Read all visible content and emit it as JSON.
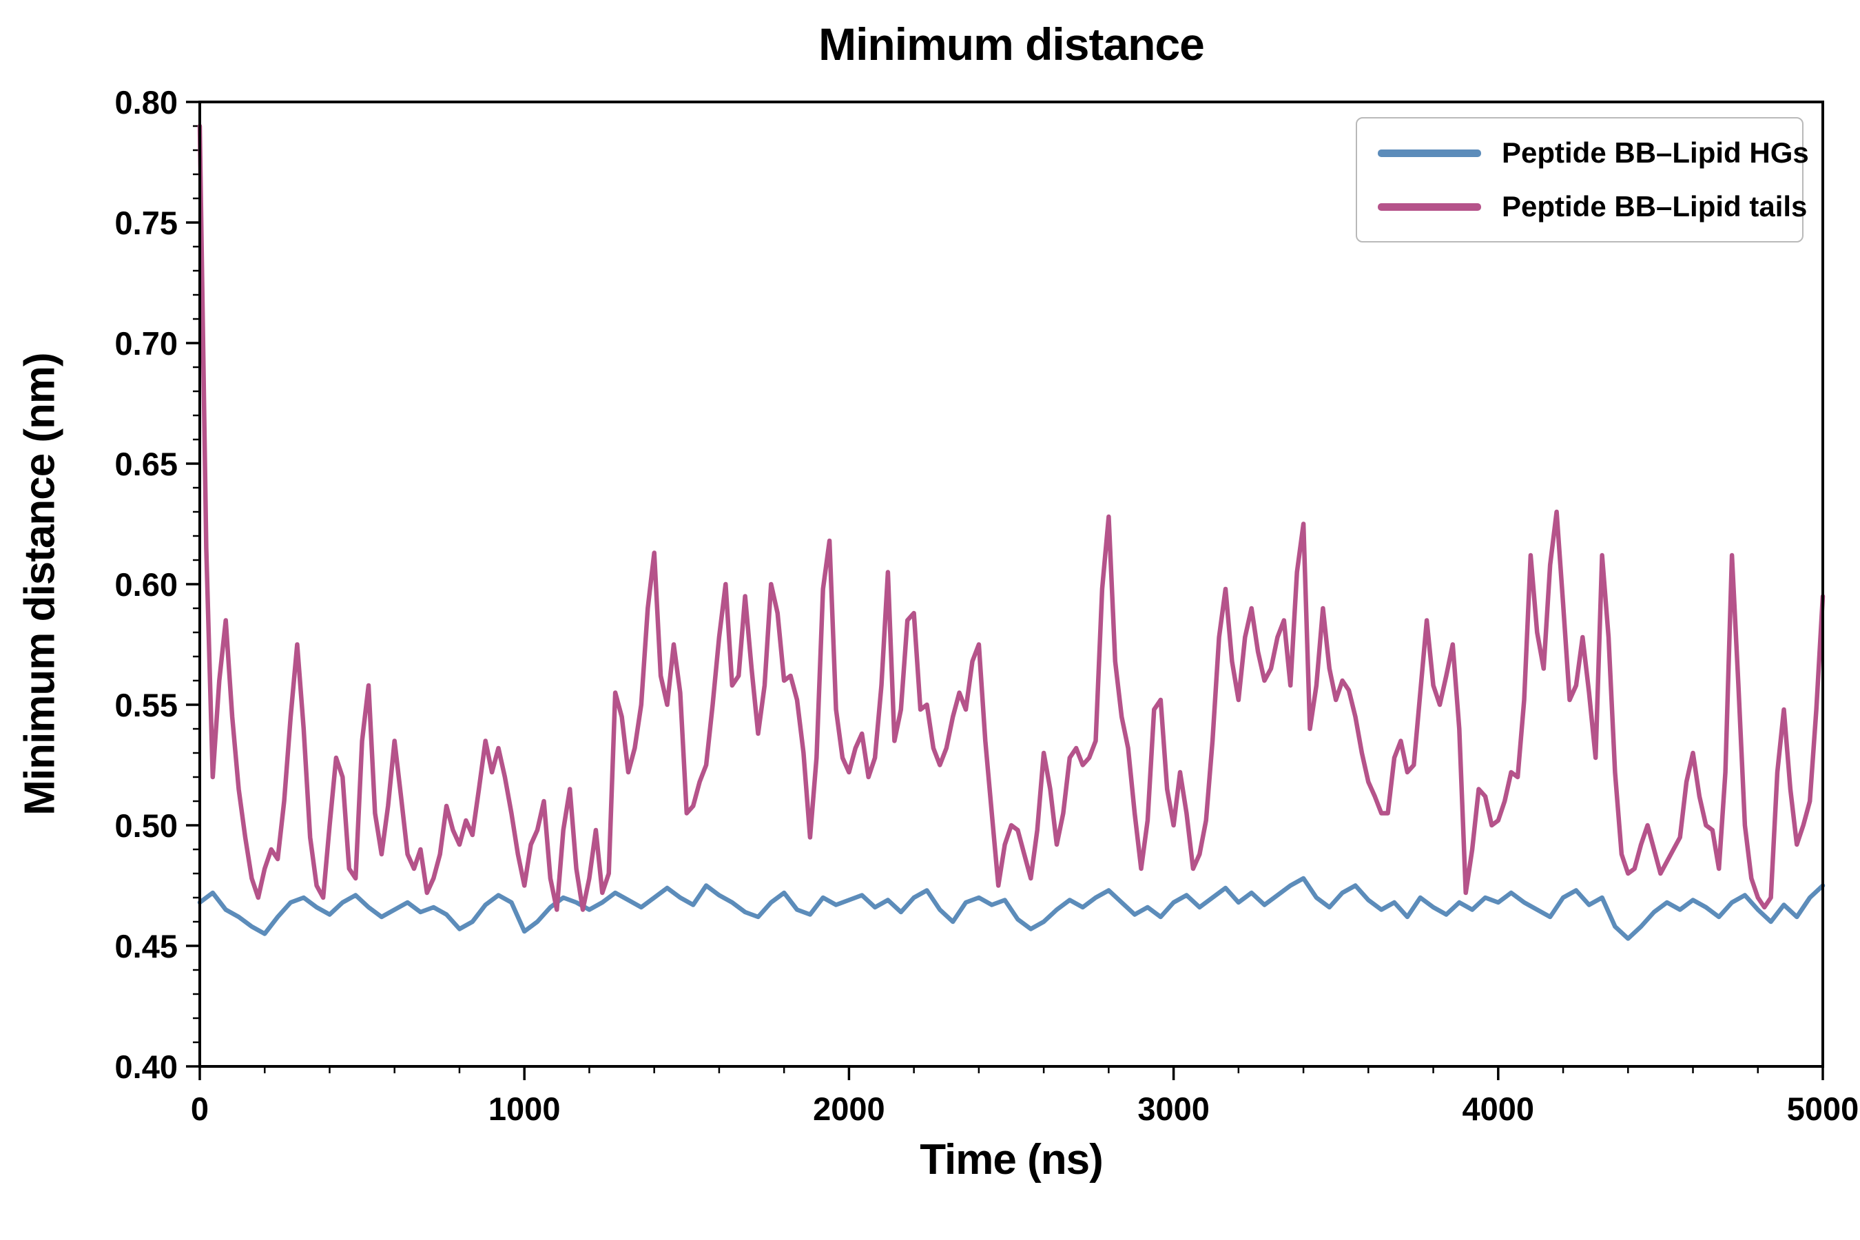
{
  "figure": {
    "background": "#ffffff",
    "axis_color": "#000000"
  },
  "chart_data": {
    "type": "line",
    "title": "Minimum distance",
    "xlabel": "Time (ns)",
    "ylabel": "Minimum distance (nm)",
    "xlim": [
      0,
      5000
    ],
    "ylim": [
      0.4,
      0.8
    ],
    "grid": false,
    "legend_position": "upper right",
    "x_ticks": [
      0,
      1000,
      2000,
      3000,
      4000,
      5000
    ],
    "x_tick_labels": [
      "0",
      "1000",
      "2000",
      "3000",
      "4000",
      "5000"
    ],
    "x_minor_step": 200,
    "y_ticks": [
      0.4,
      0.45,
      0.5,
      0.55,
      0.6,
      0.65,
      0.7,
      0.75,
      0.8
    ],
    "y_tick_labels": [
      "0.40",
      "0.45",
      "0.50",
      "0.55",
      "0.60",
      "0.65",
      "0.70",
      "0.75",
      "0.80"
    ],
    "y_minor_step": 0.01,
    "series": [
      {
        "name": "Peptide BB–Lipid HGs",
        "color": "#5c8cba",
        "x_start": 0,
        "x_step": 40,
        "values": [
          0.468,
          0.472,
          0.465,
          0.462,
          0.458,
          0.455,
          0.462,
          0.468,
          0.47,
          0.466,
          0.463,
          0.468,
          0.471,
          0.466,
          0.462,
          0.465,
          0.468,
          0.464,
          0.466,
          0.463,
          0.457,
          0.46,
          0.467,
          0.471,
          0.468,
          0.456,
          0.46,
          0.466,
          0.47,
          0.468,
          0.465,
          0.468,
          0.472,
          0.469,
          0.466,
          0.47,
          0.474,
          0.47,
          0.467,
          0.475,
          0.471,
          0.468,
          0.464,
          0.462,
          0.468,
          0.472,
          0.465,
          0.463,
          0.47,
          0.467,
          0.469,
          0.471,
          0.466,
          0.469,
          0.464,
          0.47,
          0.473,
          0.465,
          0.46,
          0.468,
          0.47,
          0.467,
          0.469,
          0.461,
          0.457,
          0.46,
          0.465,
          0.469,
          0.466,
          0.47,
          0.473,
          0.468,
          0.463,
          0.466,
          0.462,
          0.468,
          0.471,
          0.466,
          0.47,
          0.474,
          0.468,
          0.472,
          0.467,
          0.471,
          0.475,
          0.478,
          0.47,
          0.466,
          0.472,
          0.475,
          0.469,
          0.465,
          0.468,
          0.462,
          0.47,
          0.466,
          0.463,
          0.468,
          0.465,
          0.47,
          0.468,
          0.472,
          0.468,
          0.465,
          0.462,
          0.47,
          0.473,
          0.467,
          0.47,
          0.458,
          0.453,
          0.458,
          0.464,
          0.468,
          0.465,
          0.469,
          0.466,
          0.462,
          0.468,
          0.471,
          0.465,
          0.46,
          0.467,
          0.462,
          0.47,
          0.475
        ]
      },
      {
        "name": "Peptide BB–Lipid tails",
        "color": "#b5538a",
        "x_start": 0,
        "x_step": 20,
        "values": [
          0.79,
          0.615,
          0.52,
          0.56,
          0.585,
          0.545,
          0.515,
          0.495,
          0.478,
          0.47,
          0.482,
          0.49,
          0.486,
          0.51,
          0.545,
          0.575,
          0.54,
          0.495,
          0.475,
          0.47,
          0.5,
          0.528,
          0.52,
          0.482,
          0.478,
          0.535,
          0.558,
          0.505,
          0.488,
          0.508,
          0.535,
          0.512,
          0.488,
          0.482,
          0.49,
          0.472,
          0.478,
          0.488,
          0.508,
          0.498,
          0.492,
          0.502,
          0.496,
          0.515,
          0.535,
          0.522,
          0.532,
          0.52,
          0.505,
          0.488,
          0.475,
          0.492,
          0.498,
          0.51,
          0.478,
          0.465,
          0.498,
          0.515,
          0.482,
          0.465,
          0.478,
          0.498,
          0.472,
          0.48,
          0.555,
          0.545,
          0.522,
          0.532,
          0.55,
          0.59,
          0.613,
          0.562,
          0.55,
          0.575,
          0.555,
          0.505,
          0.508,
          0.518,
          0.525,
          0.55,
          0.578,
          0.6,
          0.558,
          0.562,
          0.595,
          0.565,
          0.538,
          0.558,
          0.6,
          0.588,
          0.56,
          0.562,
          0.552,
          0.53,
          0.495,
          0.528,
          0.598,
          0.618,
          0.548,
          0.528,
          0.522,
          0.532,
          0.538,
          0.52,
          0.528,
          0.558,
          0.605,
          0.535,
          0.548,
          0.585,
          0.588,
          0.548,
          0.55,
          0.532,
          0.525,
          0.532,
          0.545,
          0.555,
          0.548,
          0.568,
          0.575,
          0.535,
          0.505,
          0.475,
          0.492,
          0.5,
          0.498,
          0.488,
          0.478,
          0.498,
          0.53,
          0.515,
          0.492,
          0.505,
          0.528,
          0.532,
          0.525,
          0.528,
          0.535,
          0.598,
          0.628,
          0.568,
          0.545,
          0.532,
          0.505,
          0.482,
          0.502,
          0.548,
          0.552,
          0.515,
          0.5,
          0.522,
          0.505,
          0.482,
          0.488,
          0.502,
          0.535,
          0.578,
          0.598,
          0.568,
          0.552,
          0.578,
          0.59,
          0.572,
          0.56,
          0.565,
          0.578,
          0.585,
          0.558,
          0.605,
          0.625,
          0.54,
          0.558,
          0.59,
          0.565,
          0.552,
          0.56,
          0.556,
          0.545,
          0.53,
          0.518,
          0.512,
          0.505,
          0.505,
          0.528,
          0.535,
          0.522,
          0.525,
          0.555,
          0.585,
          0.558,
          0.55,
          0.562,
          0.575,
          0.54,
          0.472,
          0.49,
          0.515,
          0.512,
          0.5,
          0.502,
          0.51,
          0.522,
          0.52,
          0.552,
          0.612,
          0.58,
          0.565,
          0.608,
          0.63,
          0.592,
          0.552,
          0.558,
          0.578,
          0.555,
          0.528,
          0.612,
          0.578,
          0.522,
          0.488,
          0.48,
          0.482,
          0.492,
          0.5,
          0.49,
          0.48,
          0.485,
          0.49,
          0.495,
          0.518,
          0.53,
          0.512,
          0.5,
          0.498,
          0.482,
          0.522,
          0.612,
          0.558,
          0.5,
          0.478,
          0.47,
          0.466,
          0.47,
          0.522,
          0.548,
          0.515,
          0.492,
          0.5,
          0.51,
          0.548,
          0.595
        ]
      }
    ]
  }
}
